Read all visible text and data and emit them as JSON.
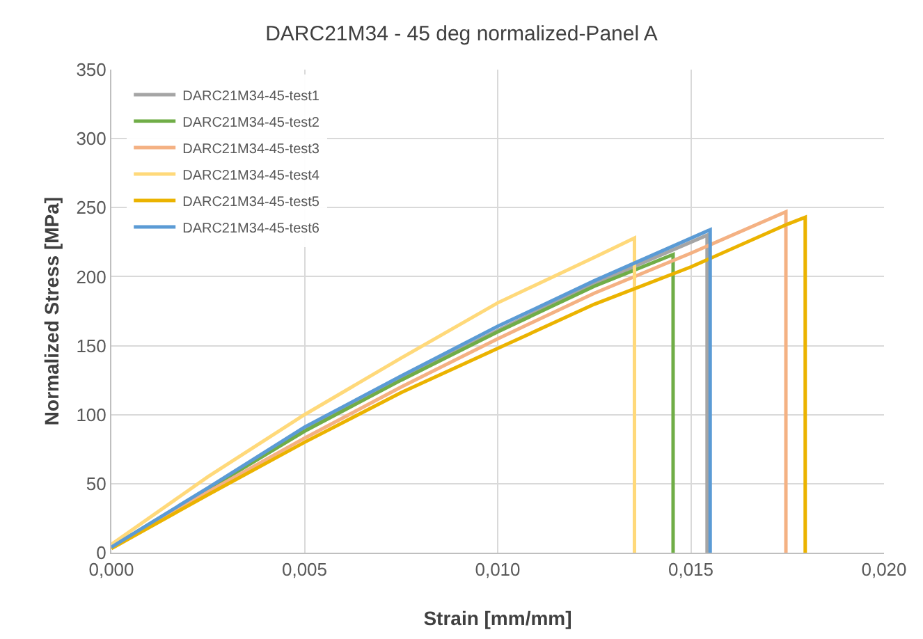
{
  "chart_data": {
    "type": "line",
    "title": "DARC21M34 - 45 deg normalized-Panel A",
    "xlabel": "Strain [mm/mm]",
    "ylabel": "Normalized Stress [MPa]",
    "xlim": [
      0,
      0.02
    ],
    "xticks": [
      {
        "value": 0,
        "label": "0,000"
      },
      {
        "value": 0.005,
        "label": "0,005"
      },
      {
        "value": 0.01,
        "label": "0,010"
      },
      {
        "value": 0.015,
        "label": "0,015"
      },
      {
        "value": 0.02,
        "label": "0,020"
      }
    ],
    "ylim": [
      0,
      350
    ],
    "yticks": [
      0,
      50,
      100,
      150,
      200,
      250,
      300,
      350
    ],
    "grid": true,
    "legend": "top left",
    "marker": "none",
    "line_style": "solid",
    "series": [
      {
        "name": "DARC21M34-45-test1",
        "color": "#a5a5a5",
        "x": [
          0,
          0.0025,
          0.005,
          0.0075,
          0.01,
          0.0125,
          0.01542,
          0.01542
        ],
        "values": [
          4,
          46,
          89,
          126,
          161,
          195,
          230,
          0
        ]
      },
      {
        "name": "DARC21M34-45-test2",
        "color": "#70ad47",
        "x": [
          0,
          0.0025,
          0.005,
          0.0075,
          0.01,
          0.0125,
          0.01454,
          0.01454
        ],
        "values": [
          4,
          46,
          88,
          125,
          160,
          193,
          216,
          0
        ]
      },
      {
        "name": "DARC21M34-45-test3",
        "color": "#f4b183",
        "x": [
          0,
          0.0025,
          0.005,
          0.0075,
          0.01,
          0.0125,
          0.015,
          0.01746,
          0.01746
        ],
        "values": [
          4,
          44,
          83,
          120,
          155,
          188,
          217,
          247,
          0
        ]
      },
      {
        "name": "DARC21M34-45-test4",
        "color": "#ffd97a",
        "x": [
          0,
          0.0025,
          0.005,
          0.0075,
          0.01,
          0.0125,
          0.01354,
          0.01354
        ],
        "values": [
          6,
          55,
          100,
          141,
          181,
          214,
          228,
          0
        ]
      },
      {
        "name": "DARC21M34-45-test5",
        "color": "#ebb300",
        "x": [
          0,
          0.0025,
          0.005,
          0.0075,
          0.01,
          0.0125,
          0.015,
          0.0175,
          0.01796,
          0.01796
        ],
        "values": [
          3,
          42,
          80,
          116,
          148,
          180,
          207,
          238,
          243,
          0
        ]
      },
      {
        "name": "DARC21M34-45-test6",
        "color": "#5b9bd5",
        "x": [
          0,
          0.0025,
          0.005,
          0.0075,
          0.01,
          0.0125,
          0.0155,
          0.0155
        ],
        "values": [
          4,
          47,
          91,
          128,
          164,
          197,
          234,
          0
        ]
      }
    ]
  }
}
